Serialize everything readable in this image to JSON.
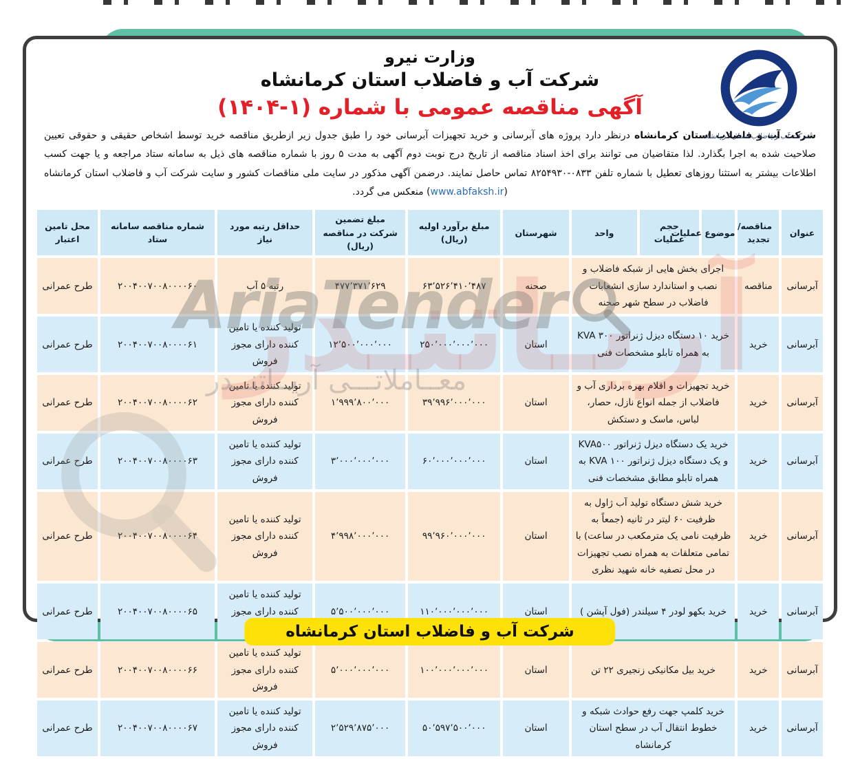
{
  "header": {
    "ministry": "وزارت نیرو",
    "company": "شرکت آب و فاضلاب استان کرمانشاه",
    "announcement_title": "آگهی مناقصه عمومی با شماره (۱-۱۴۰۴)",
    "logo_caption": "شرکت آب و فاضلاب استان کرمانشاه"
  },
  "intro": {
    "lead": "شرکت آب و فاضلاب استان کرمانشاه",
    "body": " درنظر دارد پروژه های آبرسانی و خرید تجهیزات آبرسانی خود را طبق جدول زیر ازطریق مناقصه خرید توسط اشخاص حقیقی و حقوقی تعیین صلاحیت شده به اجرا بگذارد. لذا متقاضیان می توانند برای اخذ اسناد مناقصه از تاریخ درج نوبت دوم آگهی به مدت ۵ روز با شماره مناقصه های ذیل به سامانه ستاد مراجعه و یا جهت کسب اطلاعات بیشتر به استثنا روزهای تعطیل با شماره تلفن ۰۸۳۳-۸۲۵۴۹۳۰ تماس حاصل نمایند. درضمن آگهی مذکور در سایت ملی مناقصات کشور و سایت شرکت آب و فاضلاب استان کرمانشاه (",
    "link": "www.abfaksh.ir",
    "tail": ") منعکس می گردد."
  },
  "table": {
    "columns": [
      "عنوان",
      "مناقصه/ تجدید",
      "موضوع عملیات",
      "حجم عملیات",
      "واحد",
      "شهرستان",
      "مبلغ برآورد اولیه (ریال)",
      "مبلغ تضمین شرکت در مناقصه (ریال)",
      "حداقل رتبه مورد نیاز",
      "شماره مناقصه سامانه ستاد",
      "محل تامین اعتبار"
    ],
    "rows": [
      {
        "title": "آبرسانی",
        "type": "مناقصه",
        "subject": "اجرای بخش هایی از شبکه فاضلاب و نصب و استاندارد سازی انشعابات فاضلاب در سطح شهر صحنه",
        "county": "صحنه",
        "estimate": "۶۳٬۵۲۶٬۴۱۰٬۴۸۷",
        "guarantee": "۴۷۷٬۳۷۱٬۶۲۹",
        "rank": "رتبه ۵ آب",
        "tender_no": "۲۰۰۴۰۰۷۰۰۸۰۰۰۰۶۰",
        "funding": "طرح عمرانی"
      },
      {
        "title": "آبرسانی",
        "type": "خرید",
        "subject": "خرید ۱۰ دستگاه دیزل ژنراتور KVA ۳۰۰ به همراه تابلو مشخصات فنی",
        "county": "استان",
        "estimate": "۲۵۰٬۰۰۰٬۰۰۰٬۰۰۰",
        "guarantee": "۱۲٬۵۰۰٬۰۰۰٬۰۰۰",
        "rank": "تولید کننده یا تامین کننده دارای مجوز فروش",
        "tender_no": "۲۰۰۴۰۰۷۰۰۸۰۰۰۰۶۱",
        "funding": "طرح عمرانی"
      },
      {
        "title": "آبرسانی",
        "type": "خرید",
        "subject": "خرید تجهیزات و اقلام بهره برداری آب و فاضلاب از جمله انواع نازل، حصار، لباس، ماسک و دستکش",
        "county": "استان",
        "estimate": "۳۹٬۹۹۶٬۰۰۰٬۰۰۰",
        "guarantee": "۱٬۹۹۹٬۸۰۰٬۰۰۰",
        "rank": "تولید کننده یا تامین کننده دارای مجوز فروش",
        "tender_no": "۲۰۰۴۰۰۷۰۰۸۰۰۰۰۶۲",
        "funding": "طرح عمرانی"
      },
      {
        "title": "آبرسانی",
        "type": "خرید",
        "subject": "خرید یک دستگاه دیزل ژنراتور KVA۵۰۰ و یک دستگاه دیزل ژنراتور KVA ۱۰۰ به همراه تابلو مطابق مشخصات فنی",
        "county": "استان",
        "estimate": "۶۰٬۰۰۰٬۰۰۰٬۰۰۰",
        "guarantee": "۳٬۰۰۰٬۰۰۰٬۰۰۰",
        "rank": "تولید کننده یا تامین کننده دارای مجوز فروش",
        "tender_no": "۲۰۰۴۰۰۷۰۰۸۰۰۰۰۶۳",
        "funding": "طرح عمرانی"
      },
      {
        "title": "آبرسانی",
        "type": "خرید",
        "subject": "خرید شش دستگاه تولید آب ژاول به ظرفیت ۶۰ لیتر در ثانیه (جمعاً به ظرفیت نامی یک مترمکعب در ساعت) با تمامی متعلقات به همراه نصب تجهیزات در محل تصفیه خانه شهید نظری",
        "county": "استان",
        "estimate": "۹۹٬۹۶۰٬۰۰۰٬۰۰۰",
        "guarantee": "۴٬۹۹۸٬۰۰۰٬۰۰۰",
        "rank": "تولید کننده یا تامین کننده دارای مجوز فروش",
        "tender_no": "۲۰۰۴۰۰۷۰۰۸۰۰۰۰۶۴",
        "funding": "طرح عمرانی"
      },
      {
        "title": "آبرسانی",
        "type": "خرید",
        "subject": "خرید بکهو لودر ۴ سیلندر (فول آپشن )",
        "county": "استان",
        "estimate": "۱۱۰٬۰۰۰٬۰۰۰٬۰۰۰",
        "guarantee": "۵٬۵۰۰٬۰۰۰٬۰۰۰",
        "rank": "تولید کننده یا تامین کننده دارای مجوز فروش",
        "tender_no": "۲۰۰۴۰۰۷۰۰۸۰۰۰۰۶۵",
        "funding": "طرح عمرانی"
      },
      {
        "title": "آبرسانی",
        "type": "خرید",
        "subject": "خرید بیل مکانیکی زنجیری ۲۲ تن",
        "county": "استان",
        "estimate": "۱۰۰٬۰۰۰٬۰۰۰٬۰۰۰",
        "guarantee": "۵٬۰۰۰٬۰۰۰٬۰۰۰",
        "rank": "تولید کننده یا تامین کننده دارای مجوز فروش",
        "tender_no": "۲۰۰۴۰۰۷۰۰۸۰۰۰۰۶۶",
        "funding": "طرح عمرانی"
      },
      {
        "title": "آبرسانی",
        "type": "خرید",
        "subject": "خرید کلمپ جهت رفع حوادث شبکه و خطوط انتقال آب در سطح استان کرمانشاه",
        "county": "استان",
        "estimate": "۵۰٬۵۹۷٬۵۰۰٬۰۰۰",
        "guarantee": "۲٬۵۲۹٬۸۷۵٬۰۰۰",
        "rank": "تولید کننده یا تامین کننده دارای مجوز فروش",
        "tender_no": "۲۰۰۴۰۰۷۰۰۸۰۰۰۰۶۷",
        "funding": "طرح عمرانی"
      }
    ]
  },
  "footer_banner": "شرکت آب و فاضلاب استان کرمانشاه",
  "watermark": {
    "latin": "AriaTender",
    "persian": "معــاملاتـــی آریــاتنــدر",
    "red": "آریـاتنـدر"
  },
  "colors": {
    "teal": "#5fc0a6",
    "header_cell_blue": "#cfe9f6",
    "row_peach": "#fce8d2",
    "row_blue": "#d6edf9",
    "title_red": "#e32028",
    "banner_yellow": "#ffe10a",
    "link_blue": "#2b6cb8",
    "card_border": "#3e3e3e",
    "logo_navy": "#17357e",
    "logo_light_blue": "#4f97d6"
  }
}
